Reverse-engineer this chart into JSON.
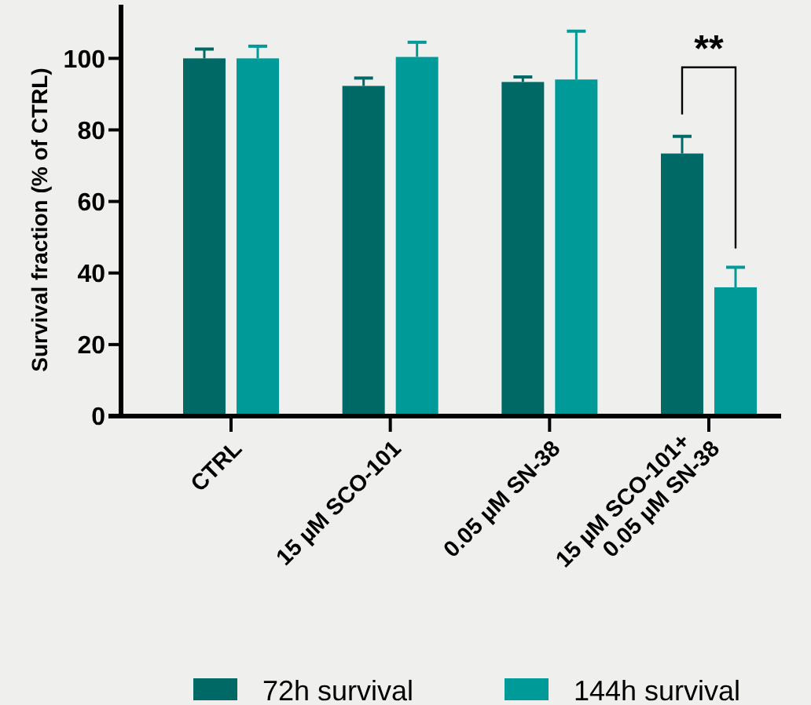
{
  "chart_data": {
    "type": "bar",
    "ylabel": "Survival fraction (% of CTRL)",
    "categories": [
      "CTRL",
      "15 µM SCO-101",
      "0.05 µM SN-38",
      "15 µM SCO-101+\n0.05 µM SN-38"
    ],
    "series": [
      {
        "name": "72h survival",
        "color": "#006865",
        "values": [
          100,
          92.3,
          93.4,
          73.4
        ],
        "errors": [
          [
            100,
            102.6
          ],
          [
            92.3,
            94.5
          ],
          [
            93.4,
            94.8
          ],
          [
            73.4,
            78.2
          ]
        ]
      },
      {
        "name": "144h survival",
        "color": "#009b98",
        "values": [
          100,
          100.4,
          94.1,
          36
        ],
        "errors": [
          [
            100,
            103.4
          ],
          [
            100.4,
            104.5
          ],
          [
            94.1,
            107.6
          ],
          [
            36,
            41.6
          ]
        ]
      }
    ],
    "ylim": [
      0,
      115
    ],
    "yticks": [
      0,
      20,
      40,
      60,
      80,
      100
    ],
    "grid": false,
    "legend": "bottom",
    "annotations": [
      "**"
    ]
  }
}
